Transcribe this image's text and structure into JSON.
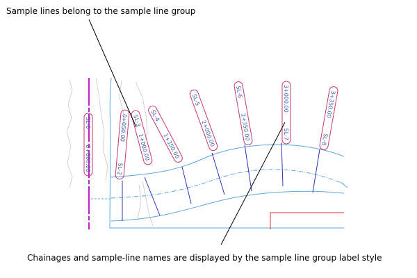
{
  "callouts": {
    "top": "Sample lines belong to the sample line group",
    "bottom": "Chainages and sample-line names are displayed by the sample line group label style"
  },
  "colors": {
    "alignment": "#5aa6dc",
    "sample_line": "#2a35b5",
    "label_border": "#c8356e",
    "label_text": "#3a5fb0",
    "baseline_magenta": "#c020c0",
    "contour": "#c8c8c8",
    "red_frame": "#e03030",
    "leader": "#000000"
  },
  "sample_line_labels": [
    {
      "name": "SL-0",
      "chainage": "0+000.00"
    },
    {
      "name": "SL-2",
      "chainage": "0+050.00"
    },
    {
      "name": "SL-3",
      "chainage": "1+000.00"
    },
    {
      "name": "SL-4",
      "chainage": "1+350.00"
    },
    {
      "name": "SL-5",
      "chainage": "2+000.00"
    },
    {
      "name": "SL-6",
      "chainage": "2+350.00"
    },
    {
      "name": "SL-7",
      "chainage": "3+000.00"
    },
    {
      "name": "SL-8",
      "chainage": "3+350.00"
    }
  ]
}
